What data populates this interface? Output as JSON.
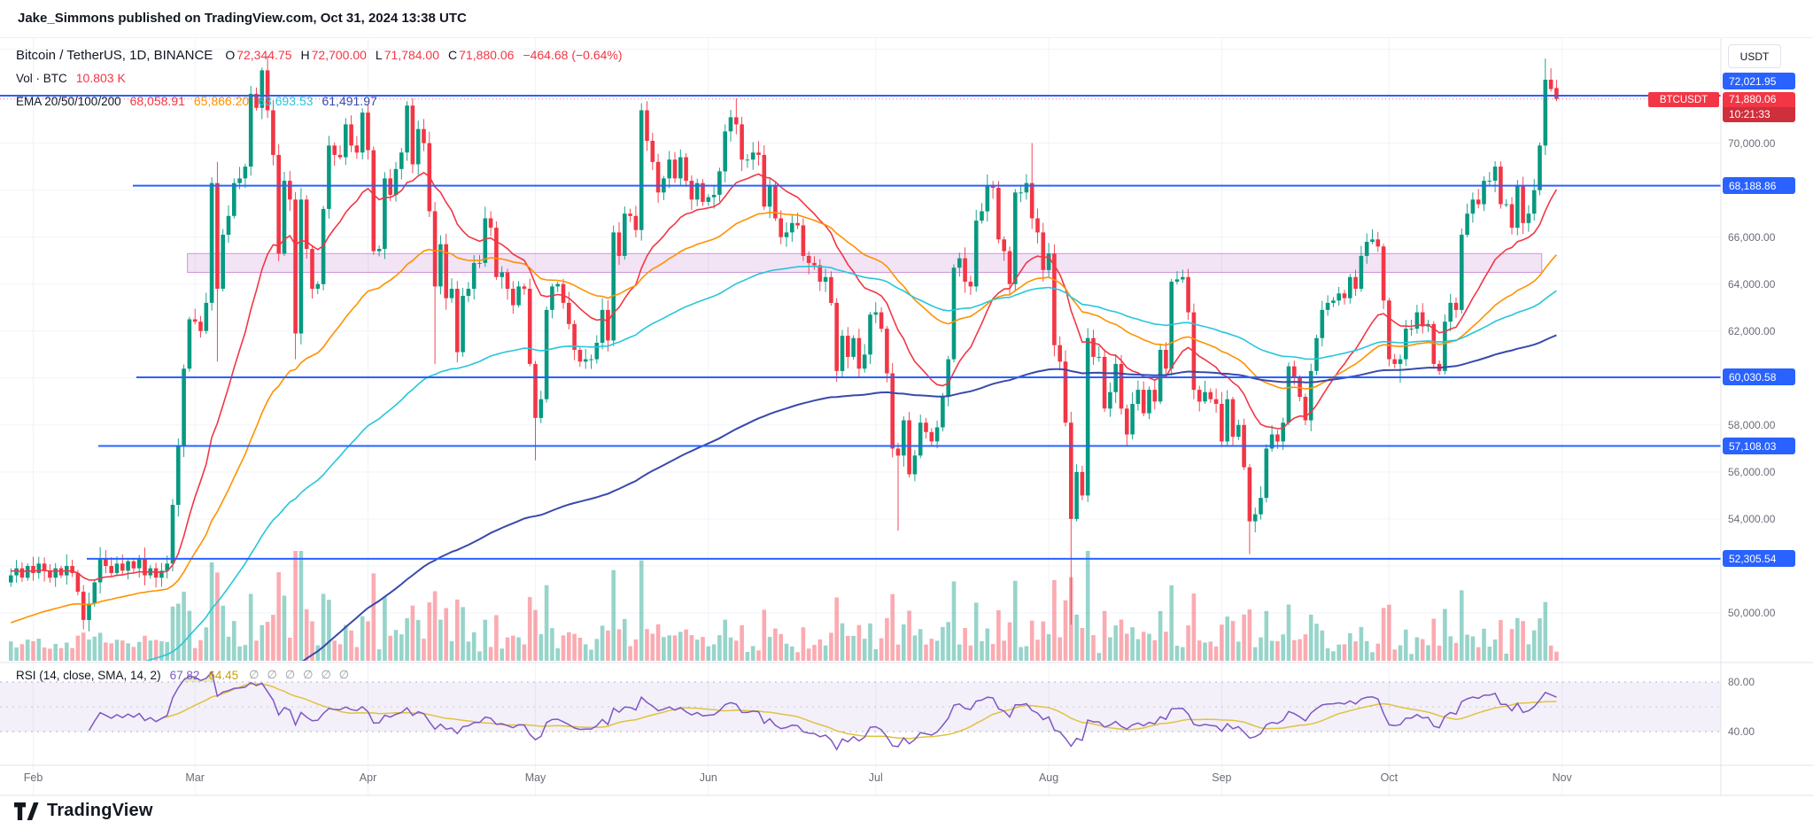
{
  "header": {
    "byline": "Jake_Simmons published on TradingView.com, Oct 31, 2024 13:38 UTC"
  },
  "legend": {
    "symbol": "Bitcoin / TetherUS, 1D, BINANCE",
    "ohlc": {
      "o_label": "O",
      "o": "72,344.75",
      "h_label": "H",
      "h": "72,700.00",
      "l_label": "L",
      "l": "71,784.00",
      "c_label": "C",
      "c": "71,880.06",
      "change": "−464.68 (−0.64%)"
    },
    "volume": {
      "label": "Vol · BTC",
      "value": "10.803 K"
    },
    "ema": {
      "label": "EMA 20/50/100/200",
      "values": [
        "68,058.91",
        "65,866.20",
        "63,693.53",
        "61,491.97"
      ]
    }
  },
  "rsi_legend": {
    "label": "RSI (14, close, SMA, 14, 2)",
    "rsi_value": "67.82",
    "ma_value": "64.45",
    "empty_values": [
      "∅",
      "∅",
      "∅",
      "∅",
      "∅",
      "∅"
    ]
  },
  "price_axis": {
    "unit": "USDT",
    "symbol_tag": "BTCUSDT",
    "last": {
      "price": "71,880.06",
      "countdown": "10:21:33"
    },
    "levels": [
      {
        "label": "72,021.95",
        "value": 72021.95
      },
      {
        "label": "68,188.86",
        "value": 68188.86
      },
      {
        "label": "60,030.58",
        "value": 60030.58
      },
      {
        "label": "57,108.03",
        "value": 57108.03
      },
      {
        "label": "52,305.54",
        "value": 52305.54
      }
    ],
    "plain_ticks": [
      {
        "label": "70,000.00",
        "value": 70000
      },
      {
        "label": "66,000.00",
        "value": 66000
      },
      {
        "label": "64,000.00",
        "value": 64000
      },
      {
        "label": "62,000.00",
        "value": 62000
      },
      {
        "label": "58,000.00",
        "value": 58000
      },
      {
        "label": "56,000.00",
        "value": 56000
      },
      {
        "label": "54,000.00",
        "value": 54000
      },
      {
        "label": "50,000.00",
        "value": 50000
      }
    ],
    "rsi_ticks": [
      {
        "label": "80.00",
        "value": 80
      },
      {
        "label": "40.00",
        "value": 40
      }
    ]
  },
  "time_axis": {
    "months": [
      "Feb",
      "Mar",
      "Apr",
      "May",
      "Jun",
      "Jul",
      "Aug",
      "Sep",
      "Oct",
      "Nov"
    ]
  },
  "footer": {
    "brand": "TradingView"
  },
  "colors": {
    "up": "#089981",
    "down": "#f23645",
    "accent_blue": "#2962ff",
    "ema": [
      "#f23645",
      "#ff9100",
      "#26c6da",
      "#3949ab"
    ],
    "rsi_line": "#7e57c2",
    "rsi_ma_line": "#e0c240",
    "rsi_ma_text": "#c7a00a",
    "zone_purple": "#9c27b0",
    "overbought_fill": "#bccd42",
    "grid": "#f0f3fa",
    "border": "#e0e3eb",
    "axis_text": "#6a6d78"
  },
  "chart_data": {
    "type": "candlestick+volume+rsi",
    "title": "BTCUSDT 1D BINANCE",
    "x_unit": "day",
    "visible_price_range_usd": [
      47960,
      74360
    ],
    "last_candle_usd": {
      "o": 72344.75,
      "h": 72700.0,
      "l": 71784.0,
      "c": 71880.06,
      "change": -464.68,
      "change_pct": -0.64
    },
    "closes_kusd": [
      51.6,
      51.9,
      51.5,
      52.0,
      51.7,
      52.1,
      51.8,
      51.5,
      51.9,
      51.6,
      52.0,
      51.7,
      50.9,
      49.7,
      50.4,
      51.3,
      52.3,
      52.0,
      51.7,
      52.1,
      51.8,
      52.2,
      51.9,
      52.3,
      51.6,
      51.9,
      51.5,
      51.8,
      52.1,
      54.6,
      57.1,
      60.4,
      62.5,
      62.4,
      62.0,
      63.2,
      68.3,
      63.8,
      66.1,
      66.9,
      68.3,
      68.5,
      69.0,
      72.1,
      71.5,
      73.1,
      71.4,
      69.5,
      65.3,
      68.4,
      67.6,
      61.9,
      67.6,
      65.5,
      63.8,
      64.0,
      67.2,
      69.9,
      69.5,
      69.4,
      70.8,
      69.9,
      69.6,
      71.3,
      69.7,
      65.4,
      65.5,
      68.5,
      67.8,
      68.9,
      69.6,
      71.6,
      69.1,
      70.6,
      70.0,
      67.1,
      63.9,
      65.7,
      63.4,
      63.8,
      61.1,
      63.5,
      63.8,
      64.9,
      64.9,
      66.8,
      66.4,
      64.3,
      64.5,
      63.8,
      63.1,
      63.9,
      63.8,
      60.6,
      58.3,
      59.1,
      62.9,
      63.9,
      64.0,
      63.2,
      62.3,
      61.2,
      60.7,
      60.8,
      60.8,
      61.5,
      62.9,
      61.6,
      66.2,
      65.2,
      67.0,
      66.9,
      66.3,
      71.4,
      70.1,
      69.2,
      67.9,
      68.5,
      69.3,
      68.5,
      69.4,
      68.4,
      67.6,
      68.3,
      67.5,
      67.7,
      67.8,
      68.8,
      70.5,
      71.1,
      70.8,
      69.3,
      69.3,
      69.6,
      69.5,
      67.3,
      68.2,
      66.8,
      66.0,
      66.2,
      66.6,
      66.5,
      65.2,
      64.9,
      64.8,
      64.1,
      64.3,
      63.2,
      60.3,
      61.8,
      60.9,
      61.7,
      60.4,
      61.0,
      62.7,
      62.8,
      62.1,
      60.2,
      57.0,
      56.7,
      58.2,
      55.9,
      56.7,
      58.1,
      57.7,
      57.3,
      57.9,
      59.2,
      60.8,
      64.7,
      65.1,
      64.1,
      63.9,
      66.7,
      67.1,
      68.2,
      68.1,
      65.9,
      65.4,
      64.0,
      67.9,
      67.9,
      68.3,
      66.8,
      66.2,
      64.6,
      65.3,
      61.4,
      60.7,
      58.1,
      54.0,
      56.0,
      55.0,
      61.7,
      60.9,
      60.9,
      58.7,
      59.4,
      60.6,
      58.7,
      57.6,
      58.9,
      59.5,
      58.5,
      59.5,
      59.0,
      61.2,
      60.4,
      64.1,
      64.2,
      64.3,
      62.8,
      59.5,
      59.0,
      59.4,
      59.1,
      58.9,
      57.3,
      59.1,
      57.5,
      58.0,
      56.2,
      53.9,
      54.2,
      54.9,
      57.0,
      57.6,
      57.3,
      58.1,
      60.5,
      60.0,
      59.2,
      58.2,
      60.3,
      61.7,
      62.9,
      63.2,
      63.3,
      63.6,
      63.4,
      64.3,
      63.8,
      65.2,
      65.8,
      65.9,
      65.6,
      63.3,
      60.8,
      60.6,
      60.8,
      62.1,
      62.1,
      62.8,
      62.2,
      62.3,
      60.6,
      60.3,
      62.4,
      63.2,
      62.9,
      66.1,
      67.0,
      67.6,
      67.4,
      68.4,
      68.4,
      69.0,
      67.4,
      67.4,
      66.4,
      68.2,
      66.6,
      67.0,
      68.0,
      69.9,
      72.7,
      72.3,
      71.9
    ],
    "wick_overrides": {
      "13": {
        "l": 49.3
      },
      "37": {
        "h": 69.2,
        "l": 60.7
      },
      "46": {
        "h": 73.7
      },
      "51": {
        "l": 60.8
      },
      "76": {
        "l": 60.6
      },
      "94": {
        "l": 56.5
      },
      "113": {
        "h": 71.7
      },
      "130": {
        "h": 71.9
      },
      "159": {
        "l": 53.5
      },
      "183": {
        "h": 70.0
      },
      "190": {
        "l": 49.5
      },
      "222": {
        "l": 52.5
      },
      "249": {
        "l": 59.8
      },
      "275": {
        "h": 73.6
      }
    },
    "last_candle_kusd": {
      "o": 72.34475,
      "h": 72.7,
      "l": 71.784,
      "c": 71.88006
    },
    "volume_overrides": {
      "277": 10.8
    },
    "volume_legend_value_k": 10.803,
    "month_tick_indices": [
      4,
      33,
      64,
      94,
      125,
      155,
      186,
      217,
      247,
      278
    ],
    "levels_usd": [
      72021.95,
      68188.86,
      60030.58,
      57108.03,
      52305.54
    ],
    "zone": {
      "from_kusd": 64.5,
      "to_kusd": 65.3,
      "start_index": 32,
      "end_index": 274
    },
    "emas": {
      "periods": [
        20,
        50,
        100,
        200
      ],
      "seeds_kusd": [
        51.8,
        49.5,
        45.5,
        40.0
      ],
      "last_values_usd": [
        68058.91,
        65866.2,
        63693.53,
        61491.97
      ]
    },
    "rsi": {
      "period": 14,
      "ma_period": 14,
      "last": 67.82,
      "ma_last": 64.45,
      "bands": [
        80,
        60,
        40
      ],
      "axis_labels": [
        80,
        40
      ]
    },
    "grid_step_usd": 2000
  }
}
